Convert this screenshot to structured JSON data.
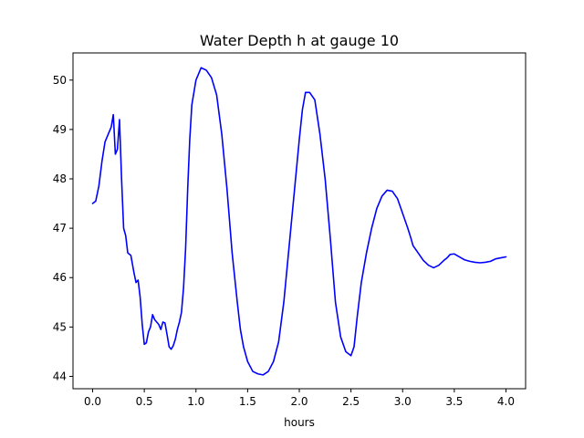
{
  "chart_data": {
    "type": "line",
    "title": "Water Depth h at gauge 10",
    "xlabel": "hours",
    "ylabel": "",
    "xlim": [
      -0.19,
      4.19
    ],
    "ylim": [
      43.75,
      50.55
    ],
    "xticks": [
      0.0,
      0.5,
      1.0,
      1.5,
      2.0,
      2.5,
      3.0,
      3.5,
      4.0
    ],
    "xtick_labels": [
      "0.0",
      "0.5",
      "1.0",
      "1.5",
      "2.0",
      "2.5",
      "3.0",
      "3.5",
      "4.0"
    ],
    "yticks": [
      44,
      45,
      46,
      47,
      48,
      49,
      50
    ],
    "ytick_labels": [
      "44",
      "45",
      "46",
      "47",
      "48",
      "49",
      "50"
    ],
    "grid": false,
    "series": [
      {
        "color": "#0000ff",
        "x": [
          0.0,
          0.03,
          0.06,
          0.09,
          0.12,
          0.15,
          0.18,
          0.2,
          0.22,
          0.24,
          0.26,
          0.28,
          0.3,
          0.32,
          0.34,
          0.37,
          0.4,
          0.42,
          0.44,
          0.46,
          0.48,
          0.5,
          0.52,
          0.54,
          0.56,
          0.58,
          0.6,
          0.64,
          0.66,
          0.68,
          0.7,
          0.72,
          0.74,
          0.76,
          0.78,
          0.8,
          0.82,
          0.84,
          0.86,
          0.88,
          0.9,
          0.92,
          0.94,
          0.96,
          1.0,
          1.05,
          1.1,
          1.15,
          1.2,
          1.25,
          1.3,
          1.35,
          1.4,
          1.43,
          1.46,
          1.5,
          1.55,
          1.6,
          1.65,
          1.7,
          1.75,
          1.8,
          1.85,
          1.9,
          1.95,
          2.0,
          2.03,
          2.06,
          2.1,
          2.15,
          2.2,
          2.25,
          2.3,
          2.35,
          2.4,
          2.45,
          2.5,
          2.53,
          2.56,
          2.6,
          2.65,
          2.7,
          2.75,
          2.8,
          2.85,
          2.9,
          2.95,
          3.0,
          3.05,
          3.08,
          3.1,
          3.15,
          3.2,
          3.25,
          3.3,
          3.35,
          3.4,
          3.43,
          3.46,
          3.5,
          3.55,
          3.6,
          3.65,
          3.7,
          3.75,
          3.8,
          3.85,
          3.88,
          3.9,
          3.95,
          4.0
        ],
        "values": [
          47.5,
          47.55,
          47.85,
          48.35,
          48.75,
          48.9,
          49.05,
          49.3,
          48.5,
          48.6,
          49.2,
          48.0,
          47.0,
          46.85,
          46.5,
          46.45,
          46.1,
          45.9,
          45.95,
          45.6,
          45.05,
          44.65,
          44.68,
          44.9,
          45.0,
          45.25,
          45.15,
          45.05,
          44.95,
          45.1,
          45.08,
          44.85,
          44.6,
          44.55,
          44.62,
          44.75,
          44.95,
          45.1,
          45.3,
          45.8,
          46.6,
          47.8,
          48.8,
          49.5,
          50.0,
          50.25,
          50.2,
          50.05,
          49.7,
          48.9,
          47.8,
          46.5,
          45.5,
          44.95,
          44.6,
          44.3,
          44.1,
          44.05,
          44.03,
          44.1,
          44.3,
          44.7,
          45.5,
          46.6,
          47.7,
          48.8,
          49.4,
          49.75,
          49.75,
          49.6,
          48.9,
          48.0,
          46.8,
          45.5,
          44.8,
          44.5,
          44.42,
          44.6,
          45.2,
          45.9,
          46.5,
          47.0,
          47.4,
          47.65,
          47.77,
          47.75,
          47.6,
          47.3,
          47.0,
          46.8,
          46.65,
          46.5,
          46.35,
          46.25,
          46.2,
          46.25,
          46.35,
          46.4,
          46.47,
          46.48,
          46.42,
          46.36,
          46.33,
          46.31,
          46.3,
          46.31,
          46.33,
          46.36,
          46.38,
          46.4,
          46.42
        ]
      }
    ]
  }
}
